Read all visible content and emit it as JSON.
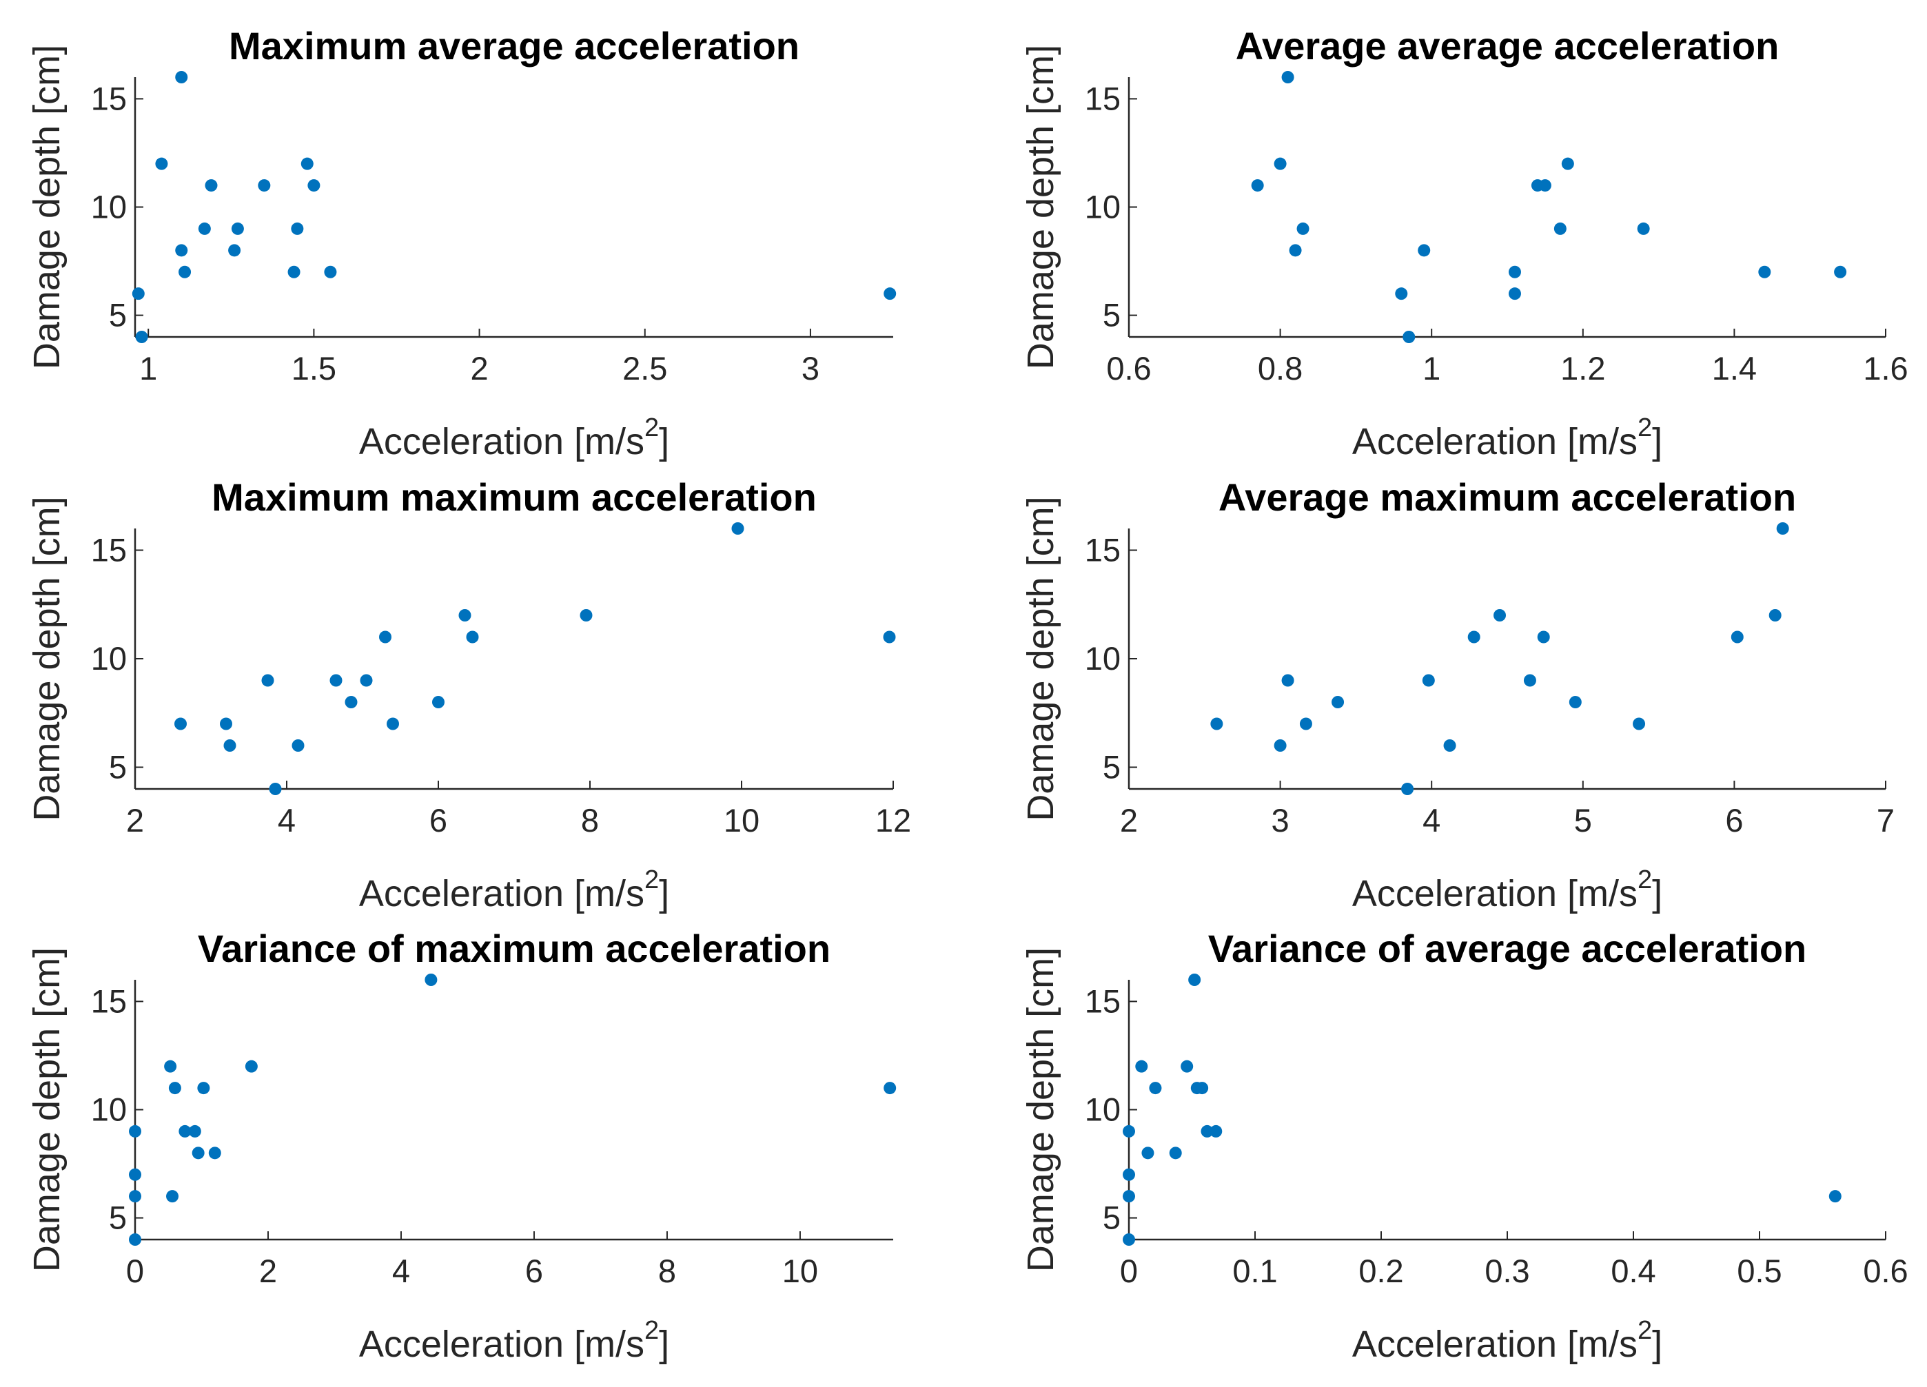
{
  "figure": {
    "marker_color": "#0072BD",
    "axis_color": "#262626",
    "background": "#ffffff"
  },
  "chart_data": [
    {
      "type": "scatter",
      "title": "Maximum average acceleration",
      "xlabel": "Acceleration [m/s",
      "xlabel_sup": "2",
      "xlabel_end": "]",
      "ylabel": "Damage depth [cm]",
      "xlim": [
        0.96,
        3.25
      ],
      "ylim": [
        4,
        16
      ],
      "xticks": [
        1,
        1.5,
        2,
        2.5,
        3
      ],
      "xtick_labels": [
        "1",
        "1.5",
        "2",
        "2.5",
        "3"
      ],
      "yticks": [
        5,
        10,
        15
      ],
      "ytick_labels": [
        "5",
        "10",
        "15"
      ],
      "x": [
        0.97,
        0.98,
        1.04,
        1.1,
        1.1,
        1.11,
        1.17,
        1.19,
        1.26,
        1.27,
        1.35,
        1.44,
        1.45,
        1.48,
        1.5,
        1.55,
        3.24
      ],
      "y": [
        6,
        4,
        12,
        16,
        8,
        7,
        9,
        11,
        8,
        9,
        11,
        7,
        9,
        12,
        11,
        7,
        6
      ]
    },
    {
      "type": "scatter",
      "title": "Average average acceleration",
      "xlabel": "Acceleration [m/s",
      "xlabel_sup": "2",
      "xlabel_end": "]",
      "ylabel": "Damage depth [cm]",
      "xlim": [
        0.6,
        1.6
      ],
      "ylim": [
        4,
        16
      ],
      "xticks": [
        0.6,
        0.8,
        1,
        1.2,
        1.4,
        1.6
      ],
      "xtick_labels": [
        "0.6",
        "0.8",
        "1",
        "1.2",
        "1.4",
        "1.6"
      ],
      "yticks": [
        5,
        10,
        15
      ],
      "ytick_labels": [
        "5",
        "10",
        "15"
      ],
      "x": [
        0.77,
        0.8,
        0.81,
        0.82,
        0.83,
        0.96,
        0.97,
        0.99,
        1.11,
        1.11,
        1.14,
        1.15,
        1.17,
        1.18,
        1.28,
        1.44,
        1.54
      ],
      "y": [
        11,
        12,
        16,
        8,
        9,
        6,
        4,
        8,
        7,
        6,
        11,
        11,
        9,
        12,
        9,
        7,
        7
      ]
    },
    {
      "type": "scatter",
      "title": "Maximum maximum acceleration",
      "xlabel": "Acceleration [m/s",
      "xlabel_sup": "2",
      "xlabel_end": "]",
      "ylabel": "Damage depth [cm]",
      "xlim": [
        2,
        12
      ],
      "ylim": [
        4,
        16
      ],
      "xticks": [
        2,
        4,
        6,
        8,
        10,
        12
      ],
      "xtick_labels": [
        "2",
        "4",
        "6",
        "8",
        "10",
        "12"
      ],
      "yticks": [
        5,
        10,
        15
      ],
      "ytick_labels": [
        "5",
        "10",
        "15"
      ],
      "x": [
        2.6,
        3.2,
        3.25,
        3.75,
        3.85,
        4.15,
        4.65,
        4.85,
        5.05,
        5.3,
        5.4,
        6.0,
        6.35,
        6.45,
        7.95,
        9.95,
        11.95
      ],
      "y": [
        7,
        7,
        6,
        9,
        4,
        6,
        9,
        8,
        9,
        11,
        7,
        8,
        12,
        11,
        12,
        16,
        11
      ]
    },
    {
      "type": "scatter",
      "title": "Average maximum acceleration",
      "xlabel": "Acceleration [m/s",
      "xlabel_sup": "2",
      "xlabel_end": "]",
      "ylabel": "Damage depth [cm]",
      "xlim": [
        2,
        7
      ],
      "ylim": [
        4,
        16
      ],
      "xticks": [
        2,
        3,
        4,
        5,
        6,
        7
      ],
      "xtick_labels": [
        "2",
        "3",
        "4",
        "5",
        "6",
        "7"
      ],
      "yticks": [
        5,
        10,
        15
      ],
      "ytick_labels": [
        "5",
        "10",
        "15"
      ],
      "x": [
        2.58,
        3.0,
        3.05,
        3.17,
        3.38,
        3.84,
        3.98,
        4.12,
        4.28,
        4.45,
        4.65,
        4.74,
        4.95,
        5.37,
        6.02,
        6.27,
        6.32
      ],
      "y": [
        7,
        6,
        9,
        7,
        8,
        4,
        9,
        6,
        11,
        12,
        9,
        11,
        8,
        7,
        11,
        12,
        16
      ]
    },
    {
      "type": "scatter",
      "title": "Variance of maximum acceleration",
      "xlabel": "Acceleration [m/s",
      "xlabel_sup": "2",
      "xlabel_end": "]",
      "ylabel": "Damage depth [cm]",
      "xlim": [
        0,
        11.4
      ],
      "ylim": [
        4,
        16
      ],
      "xticks": [
        0,
        2,
        4,
        6,
        8,
        10
      ],
      "xtick_labels": [
        "0",
        "2",
        "4",
        "6",
        "8",
        "10"
      ],
      "yticks": [
        5,
        10,
        15
      ],
      "ytick_labels": [
        "5",
        "10",
        "15"
      ],
      "x": [
        0.0,
        0.0,
        0.0,
        0.0,
        0.53,
        0.56,
        0.6,
        0.75,
        0.9,
        0.95,
        1.03,
        1.2,
        1.75,
        4.45,
        11.35
      ],
      "y": [
        9,
        7,
        6,
        4,
        12,
        6,
        11,
        9,
        9,
        8,
        11,
        8,
        12,
        16,
        11
      ]
    },
    {
      "type": "scatter",
      "title": "Variance of average acceleration",
      "xlabel": "Acceleration [m/s",
      "xlabel_sup": "2",
      "xlabel_end": "]",
      "ylabel": "Damage depth [cm]",
      "xlim": [
        0,
        0.6
      ],
      "ylim": [
        4,
        16
      ],
      "xticks": [
        0,
        0.1,
        0.2,
        0.3,
        0.4,
        0.5,
        0.6
      ],
      "xtick_labels": [
        "0",
        "0.1",
        "0.2",
        "0.3",
        "0.4",
        "0.5",
        "0.6"
      ],
      "yticks": [
        5,
        10,
        15
      ],
      "ytick_labels": [
        "5",
        "10",
        "15"
      ],
      "x": [
        0.0,
        0.0,
        0.0,
        0.0,
        0.01,
        0.015,
        0.021,
        0.037,
        0.046,
        0.052,
        0.054,
        0.058,
        0.062,
        0.069,
        0.56
      ],
      "y": [
        9,
        7,
        6,
        4,
        12,
        8,
        11,
        8,
        12,
        16,
        11,
        11,
        9,
        9,
        6
      ]
    }
  ]
}
